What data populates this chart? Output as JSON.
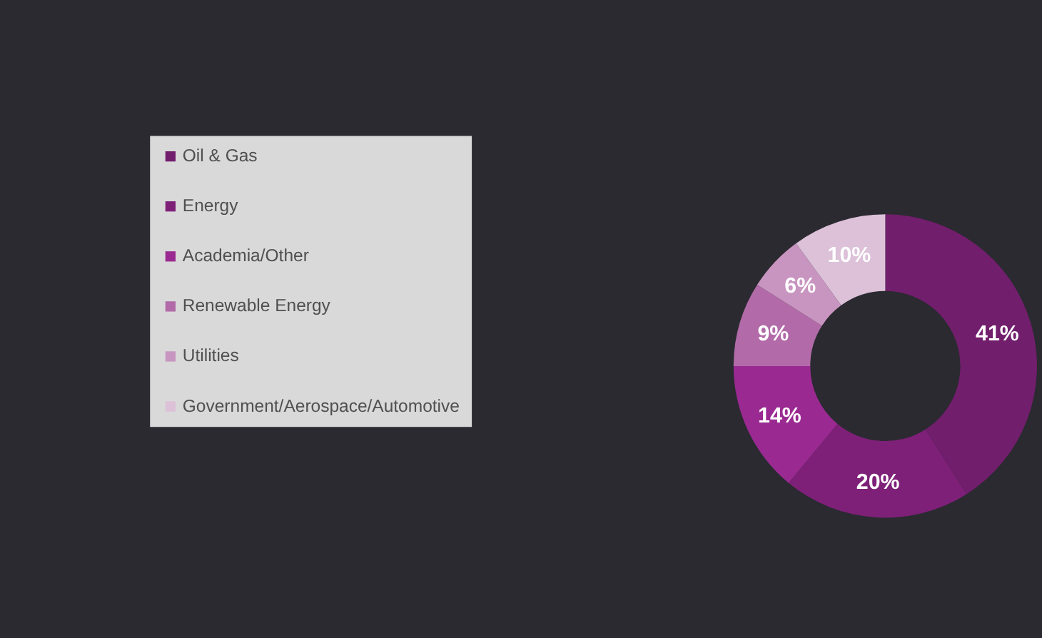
{
  "chart_data": {
    "type": "donut",
    "categories": [
      "Oil & Gas",
      "Energy",
      "Academia/Other",
      "Renewable Energy",
      "Utilities",
      "Government/Aerospace/Automotive"
    ],
    "values": [
      41,
      20,
      14,
      9,
      6,
      10
    ],
    "colors": [
      "#711e6c",
      "#7e2078",
      "#9a2a91",
      "#b26ba8",
      "#c895c0",
      "#dcc1d8"
    ],
    "value_labels": [
      "41%",
      "20%",
      "14%",
      "9%",
      "6%",
      "10%"
    ],
    "legend": "left"
  }
}
